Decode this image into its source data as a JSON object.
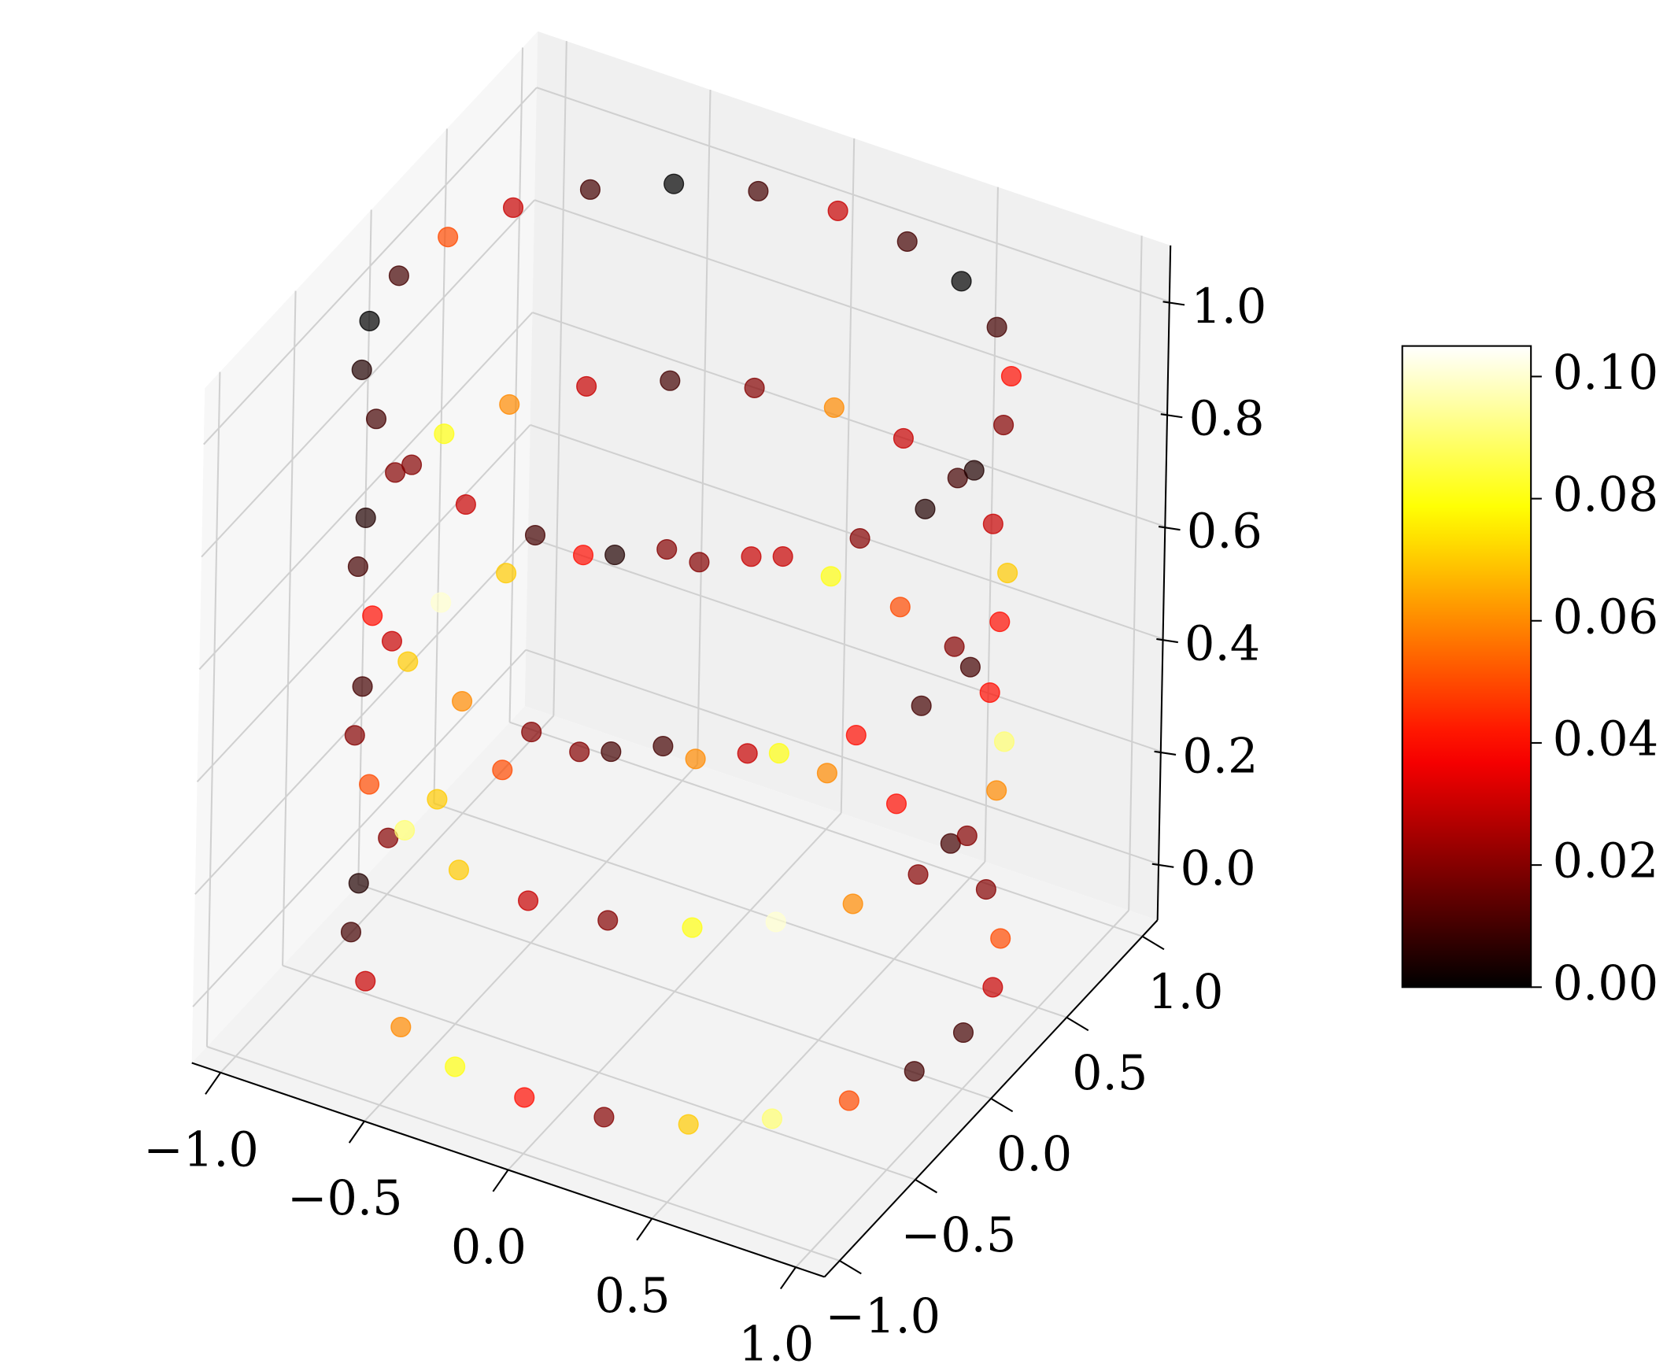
{
  "chart_data": {
    "type": "scatter3d",
    "colormap": "hot",
    "clim": [
      0,
      0.105
    ],
    "x": [
      1,
      0.966,
      0.866,
      0.707,
      0.5,
      0.259,
      0,
      -0.259,
      -0.5,
      -0.707,
      -0.866,
      -0.966,
      -1,
      -0.966,
      -0.866,
      -0.707,
      -0.5,
      -0.259,
      0,
      0.259,
      0.5,
      0.707,
      0.866,
      0.966,
      1,
      0.966,
      0.866,
      0.707,
      0.5,
      0.259,
      0,
      -0.259,
      -0.5,
      -0.707,
      -0.866,
      -0.966,
      -1,
      -0.966,
      -0.866,
      -0.707,
      -0.5,
      -0.259,
      0,
      0.259,
      0.5,
      0.707,
      0.866,
      0.966,
      1,
      0.966,
      0.866,
      0.707,
      0.5,
      0.259,
      0,
      -0.259,
      -0.5,
      -0.707,
      -0.866,
      -0.966,
      -1,
      -0.966,
      -0.866,
      -0.707,
      -0.5,
      -0.259,
      0,
      0.259,
      0.5,
      0.707,
      0.866,
      0.966,
      1,
      0.966,
      0.866,
      0.707,
      0.5,
      0.259,
      0,
      -0.259,
      -0.5,
      -0.707,
      -0.866,
      -0.966,
      -1,
      -0.966,
      -0.866,
      -0.707,
      -0.5,
      -0.259,
      0,
      0.259,
      0.5,
      0.707,
      0.866,
      0.966
    ],
    "y": [
      0,
      0.259,
      0.5,
      0.707,
      0.866,
      0.966,
      1,
      0.966,
      0.866,
      0.707,
      0.5,
      0.259,
      0,
      -0.259,
      -0.5,
      -0.707,
      -0.866,
      -0.966,
      -1,
      -0.966,
      -0.866,
      -0.707,
      -0.5,
      -0.259,
      0,
      0.259,
      0.5,
      0.707,
      0.866,
      0.966,
      1,
      0.966,
      0.866,
      0.707,
      0.5,
      0.259,
      0,
      -0.259,
      -0.5,
      -0.707,
      -0.866,
      -0.966,
      -1,
      -0.966,
      -0.866,
      -0.707,
      -0.5,
      -0.259,
      0,
      0.259,
      0.5,
      0.707,
      0.866,
      0.966,
      1,
      0.966,
      0.866,
      0.707,
      0.5,
      0.259,
      0,
      -0.259,
      -0.5,
      -0.707,
      -0.866,
      -0.966,
      -1,
      -0.966,
      -0.866,
      -0.707,
      -0.5,
      -0.259,
      0,
      0.259,
      0.5,
      0.707,
      0.866,
      0.966,
      1,
      0.966,
      0.866,
      0.707,
      0.5,
      0.259,
      0,
      -0.259,
      -0.5,
      -0.707,
      -0.866,
      -0.966,
      -1,
      -0.966,
      -0.866,
      -0.707,
      -0.5,
      -0.259
    ],
    "z": [
      0,
      0,
      0,
      0,
      0,
      0,
      0,
      0,
      0,
      0,
      0,
      0,
      0,
      0,
      0,
      0,
      0,
      0,
      0,
      0,
      0,
      0,
      0,
      0,
      0.35,
      0.35,
      0.35,
      0.35,
      0.35,
      0.35,
      0.35,
      0.35,
      0.35,
      0.35,
      0.35,
      0.35,
      0.35,
      0.35,
      0.35,
      0.35,
      0.35,
      0.35,
      0.35,
      0.35,
      0.35,
      0.35,
      0.35,
      0.35,
      0.65,
      0.65,
      0.65,
      0.65,
      0.65,
      0.65,
      0.65,
      0.65,
      0.65,
      0.65,
      0.65,
      0.65,
      0.65,
      0.65,
      0.65,
      0.65,
      0.65,
      0.65,
      0.65,
      0.65,
      0.65,
      0.65,
      0.65,
      0.65,
      1,
      1,
      1,
      1,
      1,
      1,
      1,
      1,
      1,
      1,
      1,
      1,
      1,
      1,
      1,
      1,
      1,
      1,
      1,
      1,
      1,
      1,
      1,
      1
    ],
    "values": [
      0.01,
      0.03,
      0.05,
      0.02,
      0.01,
      0.04,
      0.06,
      0.03,
      0.01,
      0.02,
      0.05,
      0.07,
      0.02,
      0.005,
      0.01,
      0.03,
      0.06,
      0.08,
      0.04,
      0.02,
      0.07,
      0.09,
      0.05,
      0.01,
      0.02,
      0.06,
      0.09,
      0.04,
      0.02,
      0.05,
      0.08,
      0.03,
      0.02,
      0.04,
      0.07,
      0.1,
      0.03,
      0.01,
      0.02,
      0.05,
      0.09,
      0.07,
      0.03,
      0.02,
      0.08,
      0.1,
      0.06,
      0.02,
      0.01,
      0.04,
      0.07,
      0.03,
      0.01,
      0.03,
      0.06,
      0.02,
      0.01,
      0.03,
      0.06,
      0.08,
      0.02,
      0.005,
      0.01,
      0.04,
      0.07,
      0.06,
      0.02,
      0.01,
      0.06,
      0.08,
      0.04,
      0.01,
      0.005,
      0.02,
      0.04,
      0.01,
      0,
      0.01,
      0.03,
      0.01,
      0,
      0.01,
      0.03,
      0.05,
      0.01,
      0,
      0.005,
      0.01,
      0.02,
      0.03,
      0.01,
      0.005,
      0.02,
      0.03,
      0.02,
      0.005
    ],
    "xlim": [
      -1.1,
      1.1
    ],
    "ylim": [
      -1.1,
      1.1
    ],
    "zlim": [
      -0.1,
      1.1
    ],
    "xticks": [
      {
        "value": -1,
        "label": "−1.0"
      },
      {
        "value": -0.5,
        "label": "−0.5"
      },
      {
        "value": 0,
        "label": "0.0"
      },
      {
        "value": 0.5,
        "label": "0.5"
      },
      {
        "value": 1,
        "label": "1.0"
      }
    ],
    "yticks": [
      {
        "value": -1,
        "label": "−1.0"
      },
      {
        "value": -0.5,
        "label": "−0.5"
      },
      {
        "value": 0,
        "label": "0.0"
      },
      {
        "value": 0.5,
        "label": "0.5"
      },
      {
        "value": 1,
        "label": "1.0"
      }
    ],
    "zticks": [
      {
        "value": 0,
        "label": "0.0"
      },
      {
        "value": 0.2,
        "label": "0.2"
      },
      {
        "value": 0.4,
        "label": "0.4"
      },
      {
        "value": 0.6,
        "label": "0.6"
      },
      {
        "value": 0.8,
        "label": "0.8"
      },
      {
        "value": 1,
        "label": "1.0"
      }
    ],
    "cticks": [
      {
        "value": 0,
        "label": "0.00"
      },
      {
        "value": 0.02,
        "label": "0.02"
      },
      {
        "value": 0.04,
        "label": "0.04"
      },
      {
        "value": 0.06,
        "label": "0.06"
      },
      {
        "value": 0.08,
        "label": "0.08"
      },
      {
        "value": 0.1,
        "label": "0.10"
      }
    ],
    "grid": true
  }
}
